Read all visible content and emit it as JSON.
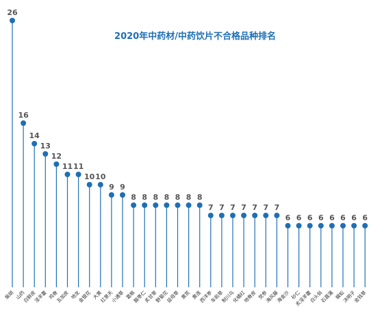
{
  "chart_data": {
    "type": "lollipop",
    "title": "2020年中药材/中药饮片不合格品种排名",
    "categories": [
      "柴胡",
      "山药",
      "白鲜皮",
      "淫羊藿",
      "鸡骨",
      "五加皮",
      "地龙",
      "金银花",
      "大黄",
      "红景天",
      "小通草",
      "葛根",
      "酸枣仁",
      "炙甘草",
      "野菊花",
      "益母草",
      "黄芪",
      "黄连",
      "西洋参",
      "车前草",
      "制川乌",
      "化橘红",
      "地骨皮",
      "党参",
      "海风藤",
      "海金沙",
      "砂仁",
      "炙淫羊藿",
      "白头翁",
      "石菖蒲",
      "蜈蚣",
      "决明子",
      "金钱草"
    ],
    "values": [
      26,
      16,
      14,
      13,
      12,
      11,
      11,
      10,
      10,
      9,
      9,
      8,
      8,
      8,
      8,
      8,
      8,
      8,
      7,
      7,
      7,
      7,
      7,
      7,
      7,
      6,
      6,
      6,
      6,
      6,
      6,
      6,
      6
    ],
    "ylim": [
      0,
      26
    ],
    "colors": {
      "series": "#1f6fb4",
      "label": "#555555"
    }
  }
}
